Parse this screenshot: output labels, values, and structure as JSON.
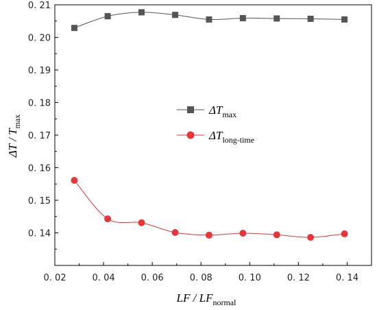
{
  "chart_data": {
    "type": "line",
    "x": [
      0.028,
      0.0417,
      0.0556,
      0.0694,
      0.0833,
      0.0972,
      0.1111,
      0.125,
      0.1389
    ],
    "series": [
      {
        "name_main": "ΔT",
        "name_sub": "max",
        "color": "#555555",
        "marker": "square",
        "values": [
          0.2029,
          0.2065,
          0.2077,
          0.2069,
          0.2055,
          0.2059,
          0.2058,
          0.2057,
          0.2055
        ]
      },
      {
        "name_main": "ΔT",
        "name_sub": "long-time",
        "color": "#e8353a",
        "marker": "circle",
        "values": [
          0.1561,
          0.1443,
          0.1431,
          0.1401,
          0.1393,
          0.1399,
          0.1394,
          0.1386,
          0.1397
        ]
      }
    ],
    "xlim": [
      0.02,
      0.15
    ],
    "ylim": [
      0.13,
      0.21
    ],
    "xticks": [
      "0. 02",
      "0. 04",
      "0. 06",
      "0. 08",
      "0. 10",
      "0. 12",
      "0. 14"
    ],
    "xtick_values": [
      0.02,
      0.04,
      0.06,
      0.08,
      0.1,
      0.12,
      0.14
    ],
    "yticks": [
      "0. 14",
      "0. 15",
      "0. 16",
      "0. 17",
      "0. 18",
      "0. 19",
      "0. 20",
      "0. 21"
    ],
    "ytick_values": [
      0.14,
      0.15,
      0.16,
      0.17,
      0.18,
      0.19,
      0.2,
      0.21
    ],
    "xlabel_main": "LF / LF",
    "xlabel_sub": "normal",
    "ylabel_main": "ΔT / T",
    "ylabel_sub": "max",
    "legend_position": "center-right",
    "grid": false
  }
}
